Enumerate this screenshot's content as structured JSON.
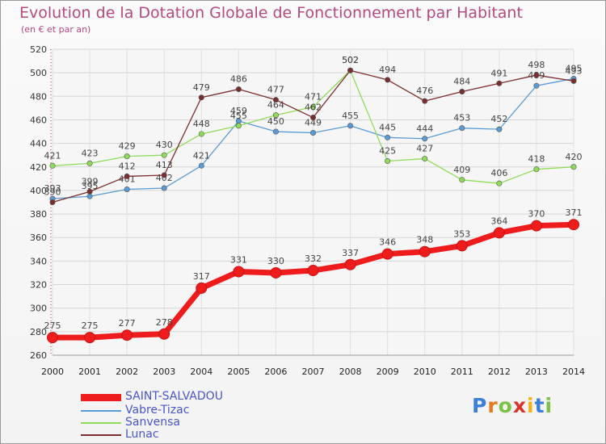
{
  "header": {
    "title": "Evolution de la Dotation Globale de Fonctionnement par Habitant",
    "subtitle": "(en € et par an)"
  },
  "brand": {
    "letters": [
      "P",
      "r",
      "o",
      "x",
      "i",
      "t",
      "i"
    ],
    "colors": [
      "#3b7fd6",
      "#e8791c",
      "#7cc143",
      "#d6342c",
      "#f2b21c",
      "#3b7fd6",
      "#7cc143"
    ]
  },
  "chart_data": {
    "type": "line",
    "x": [
      2000,
      2001,
      2002,
      2003,
      2004,
      2005,
      2006,
      2007,
      2008,
      2009,
      2010,
      2011,
      2012,
      2013,
      2014
    ],
    "ylim": [
      260,
      520
    ],
    "yticks": [
      260,
      280,
      300,
      320,
      340,
      360,
      380,
      400,
      420,
      440,
      460,
      480,
      500,
      520
    ],
    "grid": true,
    "legend_position": "bottom-left",
    "series": [
      {
        "name": "Vabre-Tizac",
        "color": "#5b9bd5",
        "values": [
          393,
          395,
          401,
          402,
          421,
          459,
          450,
          449,
          455,
          445,
          444,
          453,
          452,
          489,
          495
        ]
      },
      {
        "name": "Sanvensa",
        "color": "#8fdc5a",
        "values": [
          421,
          423,
          429,
          430,
          448,
          455,
          464,
          471,
          502,
          425,
          427,
          409,
          406,
          418,
          420
        ]
      },
      {
        "name": "Lunac",
        "color": "#7a2e2e",
        "values": [
          390,
          399,
          412,
          413,
          479,
          486,
          477,
          462,
          502,
          494,
          476,
          484,
          491,
          498,
          493
        ]
      },
      {
        "name": "SAINT-SALVADOU",
        "color": "#ee1c1c",
        "values": [
          275,
          275,
          277,
          278,
          317,
          331,
          330,
          332,
          337,
          346,
          348,
          353,
          364,
          370,
          371
        ]
      }
    ],
    "legend": [
      "SAINT-SALVADOU",
      "Vabre-Tizac",
      "Sanvensa",
      "Lunac"
    ]
  }
}
